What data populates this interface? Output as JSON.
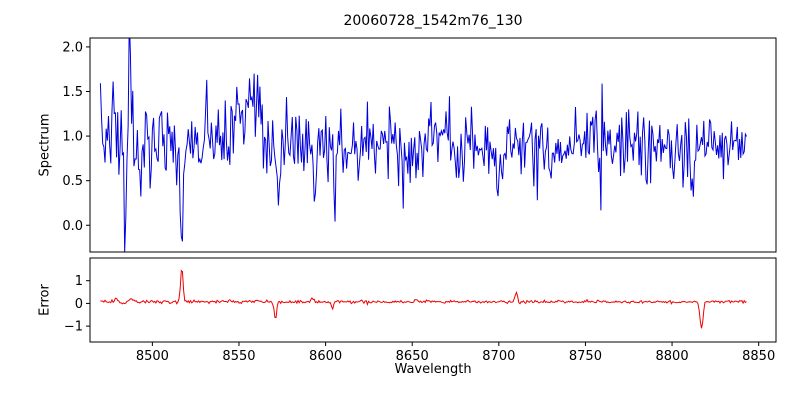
{
  "title": "20060728_1542m76_130",
  "xlabel": "Wavelength",
  "xlim": [
    8464,
    8860
  ],
  "xticks": [
    8500,
    8550,
    8600,
    8650,
    8700,
    8750,
    8800,
    8850
  ],
  "xtick_labels": [
    "8500",
    "8550",
    "8600",
    "8650",
    "8700",
    "8750",
    "8800",
    "8850"
  ],
  "chart_data": [
    {
      "type": "line",
      "name": "spectrum",
      "ylabel": "Spectrum",
      "color": "#0000dd",
      "ylim": [
        -0.3,
        2.1
      ],
      "yticks": [
        0.0,
        0.5,
        1.0,
        1.5,
        2.0
      ],
      "ytick_labels": [
        "0.0",
        "0.5",
        "1.0",
        "1.5",
        "2.0"
      ],
      "x_start": 8470,
      "x_end": 8843,
      "n_points": 560,
      "baseline": 0.93,
      "noise_std": 0.24,
      "noise_std_right": 0.19,
      "seed": 7,
      "features": [
        {
          "x": 8478,
          "amp": 0.5,
          "width": 0.8
        },
        {
          "x": 8484.5,
          "amp": -1.15,
          "width": 0.8
        },
        {
          "x": 8487,
          "amp": 1.05,
          "width": 0.8
        },
        {
          "x": 8493,
          "amp": -0.55,
          "width": 0.8
        },
        {
          "x": 8517,
          "amp": -1.15,
          "width": 0.9
        },
        {
          "x": 8550,
          "amp": 0.45,
          "width": 3
        },
        {
          "x": 8556,
          "amp": 0.75,
          "width": 1.2
        },
        {
          "x": 8560,
          "amp": 0.35,
          "width": 2
        },
        {
          "x": 8573,
          "amp": -0.6,
          "width": 0.9
        },
        {
          "x": 8594,
          "amp": -0.5,
          "width": 0.8
        },
        {
          "x": 8605,
          "amp": -0.45,
          "width": 0.8
        },
        {
          "x": 8645,
          "amp": -0.4,
          "width": 0.8
        },
        {
          "x": 8700,
          "amp": -0.45,
          "width": 0.8
        },
        {
          "x": 8812,
          "amp": -0.5,
          "width": 0.8
        }
      ]
    },
    {
      "type": "line",
      "name": "error",
      "ylabel": "Error",
      "color": "#ee0000",
      "ylim": [
        -1.7,
        2.0
      ],
      "yticks": [
        -1,
        0,
        1
      ],
      "ytick_labels": [
        "−1",
        "0",
        "1"
      ],
      "x_start": 8470,
      "x_end": 8843,
      "n_points": 560,
      "baseline": 0.07,
      "noise_std": 0.035,
      "noise_std_right": 0.03,
      "seed": 12,
      "features": [
        {
          "x": 8479,
          "amp": 0.18,
          "width": 0.8
        },
        {
          "x": 8483,
          "amp": -0.1,
          "width": 0.8
        },
        {
          "x": 8488,
          "amp": 0.12,
          "width": 0.8
        },
        {
          "x": 8517,
          "amp": 1.5,
          "width": 0.7
        },
        {
          "x": 8545,
          "amp": 0.12,
          "width": 0.6
        },
        {
          "x": 8571,
          "amp": -0.78,
          "width": 0.7
        },
        {
          "x": 8592,
          "amp": 0.15,
          "width": 0.6
        },
        {
          "x": 8604,
          "amp": -0.3,
          "width": 0.6
        },
        {
          "x": 8652,
          "amp": 0.1,
          "width": 0.6
        },
        {
          "x": 8710,
          "amp": 0.42,
          "width": 0.7
        },
        {
          "x": 8817,
          "amp": -1.18,
          "width": 0.9
        }
      ]
    }
  ]
}
